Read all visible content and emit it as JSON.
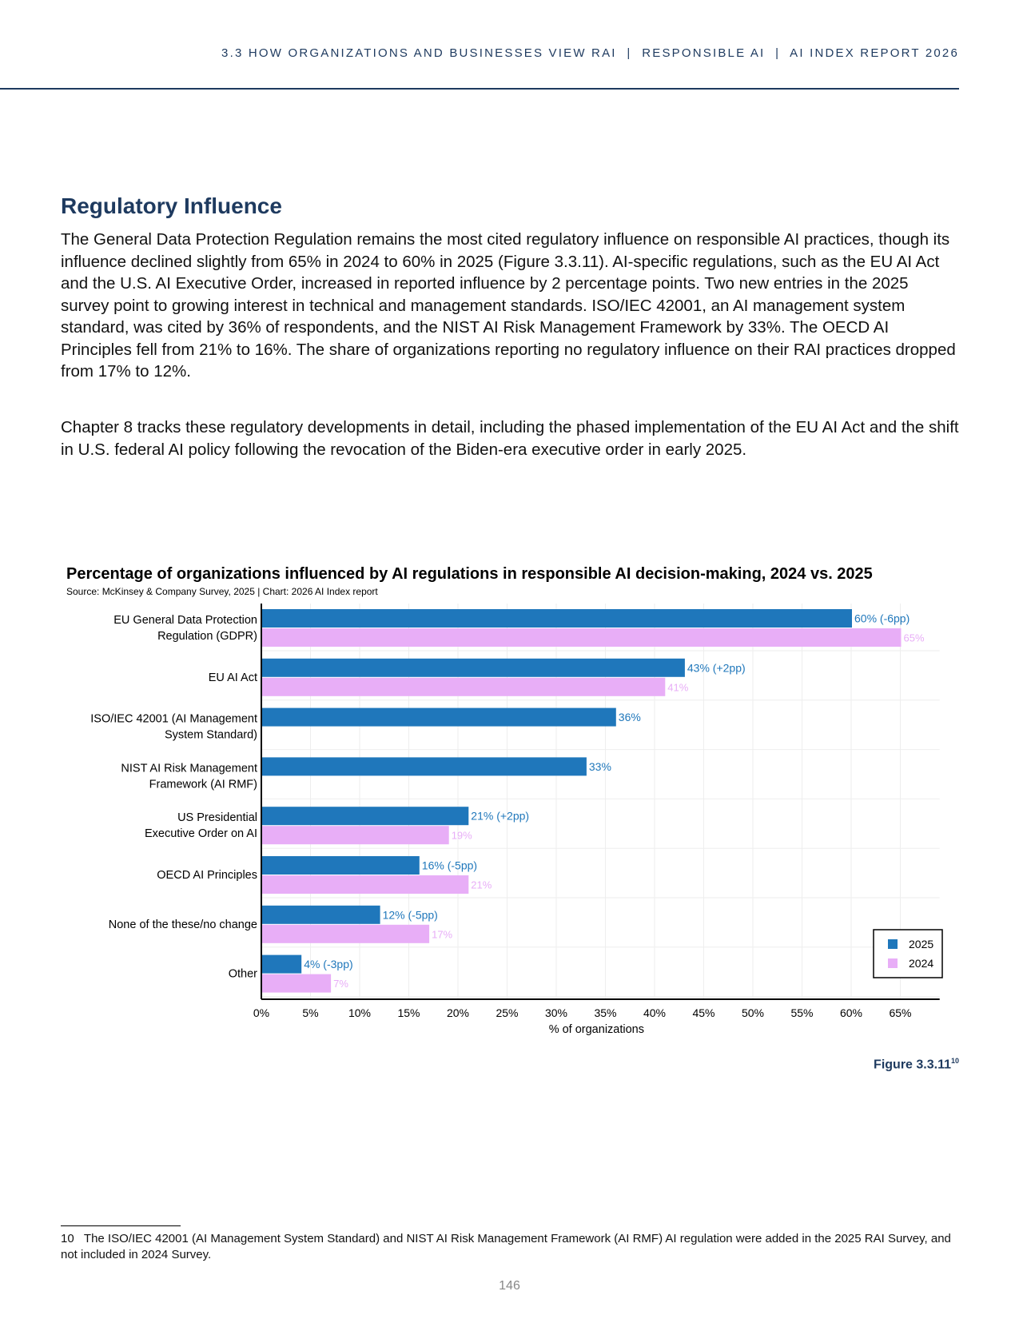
{
  "header": "3.3 HOW ORGANIZATIONS AND BUSINESSES VIEW RAI  |  RESPONSIBLE AI  |  AI INDEX REPORT 2026",
  "section_title": "Regulatory Influence",
  "paragraphs": [
    "The General Data Protection Regulation remains the most cited regulatory influence on responsible AI practices, though its influence declined slightly from 65% in 2024 to 60% in 2025 (Figure 3.3.11). AI-specific regulations, such as the EU AI Act and the U.S. AI Executive Order, increased in reported influence by 2 percentage points. Two new entries in the 2025 survey point to growing interest in technical and management standards. ISO/IEC 42001, an AI management system standard, was cited by 36% of respondents, and the NIST AI Risk Management Framework by 33%. The OECD AI Principles fell from 21% to 16%. The share of organizations reporting no regulatory influence on their RAI practices dropped from 17% to 12%.",
    "Chapter 8 tracks these regulatory developments in detail, including the phased implementation of the EU AI Act and the shift in U.S. federal AI policy following the revocation of the Biden-era executive order in early 2025."
  ],
  "figure_label": "Figure 3.3.11",
  "figure_sup": "10",
  "footnote": "10   The ISO/IEC 42001 (AI Management System Standard) and NIST AI Risk Management Framework (AI RMF) AI regulation were added in the 2025 RAI Survey, and not included in 2024 Survey.",
  "page_number": "146",
  "chart_data": {
    "type": "bar",
    "orientation": "horizontal",
    "title": "Percentage of organizations influenced by AI regulations in responsible AI decision-making, 2024 vs. 2025",
    "subtitle": "Source: McKinsey & Company Survey, 2025 | Chart: 2026 AI Index report",
    "xlabel": "% of organizations",
    "xlim": [
      0,
      69
    ],
    "xticks": [
      "0%",
      "5%",
      "10%",
      "15%",
      "20%",
      "25%",
      "30%",
      "35%",
      "40%",
      "45%",
      "50%",
      "55%",
      "60%",
      "65%"
    ],
    "grid": true,
    "legend": "bottom-right",
    "categories": [
      [
        "EU General Data Protection",
        "Regulation (GDPR)"
      ],
      [
        "EU AI Act"
      ],
      [
        "ISO/IEC 42001 (AI Management",
        "System Standard)"
      ],
      [
        "NIST AI Risk Management",
        "Framework (AI RMF)"
      ],
      [
        "US Presidential",
        "Executive Order on AI"
      ],
      [
        "OECD AI Principles"
      ],
      [
        "None of the these/no change"
      ],
      [
        "Other"
      ]
    ],
    "series": [
      {
        "name": "2025",
        "color": "#1f77bb",
        "values": [
          60,
          43,
          36,
          33,
          21,
          16,
          12,
          4
        ],
        "labels": [
          "60% (-6pp)",
          "43% (+2pp)",
          "36%",
          "33%",
          "21% (+2pp)",
          "16% (-5pp)",
          "12% (-5pp)",
          "4% (-3pp)"
        ]
      },
      {
        "name": "2024",
        "color": "#e8aef7",
        "values": [
          65,
          41,
          null,
          null,
          19,
          21,
          17,
          7
        ],
        "labels": [
          "65%",
          "41%",
          "",
          "",
          "19%",
          "21%",
          "17%",
          "7%"
        ]
      }
    ]
  }
}
